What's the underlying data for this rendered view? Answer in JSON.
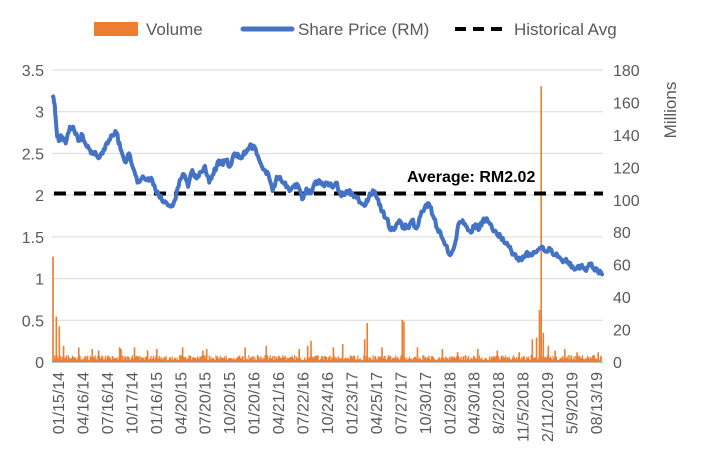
{
  "chart_data": {
    "type": "line",
    "title": "",
    "xlabel": "",
    "ylabel_left": "",
    "ylabel_right": "Millions",
    "ylim_left": [
      0,
      3.5
    ],
    "yticks_left": [
      "0",
      "0.5",
      "1",
      "1.5",
      "2",
      "2.5",
      "3",
      "3.5"
    ],
    "ylim_right": [
      0,
      180
    ],
    "yticks_right": [
      "0",
      "20",
      "40",
      "60",
      "80",
      "100",
      "120",
      "140",
      "160",
      "180"
    ],
    "grid": "horizontal",
    "legend_position": "top",
    "x_tick_labels": [
      "01/15/14",
      "04/16/14",
      "07/16/14",
      "10/17/14",
      "01/16/15",
      "04/20/15",
      "07/20/15",
      "10/20/15",
      "01/20/16",
      "04/21/16",
      "07/22/16",
      "10/24/16",
      "01/23/17",
      "04/25/17",
      "07/27/17",
      "10/30/17",
      "01/29/18",
      "04/30/18",
      "8/2/2018",
      "11/5/2018",
      "2/11/2019",
      "5/9/2019",
      "08/13/19"
    ],
    "series": [
      {
        "name": "Volume",
        "kind": "bar",
        "axis": "right",
        "color": "#ED7D31",
        "baseline_millions": 2.5,
        "spikes_millions": [
          [
            0,
            65
          ],
          [
            0.8,
            28
          ],
          [
            1.5,
            22
          ],
          [
            2.5,
            10
          ],
          [
            6.1,
            9
          ],
          [
            9.3,
            8
          ],
          [
            10.8,
            7
          ],
          [
            15.8,
            9
          ],
          [
            16.1,
            8
          ],
          [
            19.3,
            9
          ],
          [
            22.4,
            7
          ],
          [
            24.6,
            8
          ],
          [
            30.7,
            9
          ],
          [
            35.5,
            7
          ],
          [
            36.4,
            8
          ],
          [
            45.5,
            9
          ],
          [
            50.5,
            10
          ],
          [
            58.3,
            8
          ],
          [
            60.3,
            10
          ],
          [
            61.1,
            13
          ],
          [
            66.4,
            9
          ],
          [
            68.6,
            11
          ],
          [
            73.8,
            14
          ],
          [
            74.4,
            24
          ],
          [
            77.9,
            9
          ],
          [
            82.7,
            26
          ],
          [
            83.1,
            25
          ],
          [
            86.3,
            9
          ],
          [
            92.2,
            8
          ],
          [
            95.8,
            6
          ],
          [
            100.6,
            8
          ],
          [
            105.2,
            7
          ],
          [
            110.4,
            6
          ],
          [
            113.5,
            14
          ],
          [
            114.5,
            15
          ],
          [
            115.2,
            32
          ],
          [
            115.6,
            170
          ],
          [
            116.1,
            18
          ],
          [
            117.3,
            10
          ],
          [
            118.9,
            7
          ],
          [
            121.2,
            8
          ],
          [
            124.1,
            6
          ],
          [
            129.1,
            6
          ]
        ]
      },
      {
        "name": "Share Price (RM)",
        "kind": "line",
        "axis": "left",
        "color": "#4472C4",
        "x_months": [
          0,
          0.3,
          0.6,
          1,
          1.5,
          2,
          3,
          4,
          5,
          6,
          7,
          8,
          9,
          10,
          11,
          12,
          13,
          14,
          15,
          16,
          17,
          18,
          19,
          20,
          21,
          22,
          23,
          24,
          25,
          26,
          27,
          28,
          29,
          30,
          31,
          32,
          33,
          34,
          35,
          36,
          37,
          38,
          39,
          40,
          41,
          42,
          43,
          44,
          45,
          46,
          47,
          48,
          49,
          50,
          51,
          52,
          53,
          54,
          55,
          56,
          57,
          58,
          59,
          60,
          61,
          62,
          63,
          64,
          65,
          66,
          67,
          68,
          69,
          70,
          71,
          72,
          73,
          74,
          75,
          76,
          77,
          78,
          79,
          80,
          81,
          82,
          83,
          84,
          85,
          86,
          87,
          88,
          89,
          90,
          91,
          92,
          93,
          94,
          95,
          96,
          97,
          98,
          99,
          100,
          101,
          102,
          103,
          104,
          105,
          106,
          107,
          108,
          109,
          110,
          111,
          112,
          113,
          114,
          115,
          116,
          117,
          118,
          119,
          120,
          121,
          122,
          123,
          124,
          125,
          126,
          127,
          128,
          129,
          130
        ],
        "values": [
          3.18,
          3.1,
          2.95,
          2.7,
          2.65,
          2.7,
          2.62,
          2.82,
          2.78,
          2.65,
          2.72,
          2.58,
          2.5,
          2.52,
          2.45,
          2.55,
          2.62,
          2.72,
          2.75,
          2.55,
          2.4,
          2.5,
          2.32,
          2.15,
          2.2,
          2.18,
          2.2,
          2.12,
          2.0,
          1.92,
          1.9,
          1.88,
          1.95,
          2.18,
          2.25,
          2.1,
          2.3,
          2.2,
          2.28,
          2.35,
          2.15,
          2.25,
          2.4,
          2.38,
          2.42,
          2.35,
          2.5,
          2.45,
          2.48,
          2.55,
          2.6,
          2.55,
          2.4,
          2.3,
          2.25,
          2.05,
          2.22,
          2.18,
          2.15,
          2.05,
          2.1,
          2.12,
          1.95,
          2.08,
          2.02,
          2.15,
          2.18,
          2.12,
          2.15,
          2.1,
          2.15,
          2.02,
          2.0,
          2.05,
          2.0,
          1.98,
          1.9,
          1.88,
          2.02,
          2.05,
          1.95,
          1.8,
          1.72,
          1.58,
          1.6,
          1.7,
          1.62,
          1.62,
          1.7,
          1.6,
          1.75,
          1.85,
          1.9,
          1.75,
          1.6,
          1.5,
          1.4,
          1.28,
          1.38,
          1.65,
          1.7,
          1.62,
          1.55,
          1.65,
          1.6,
          1.72,
          1.68,
          1.6,
          1.55,
          1.5,
          1.42,
          1.38,
          1.3,
          1.25,
          1.22,
          1.3,
          1.28,
          1.32,
          1.35,
          1.38,
          1.32,
          1.35,
          1.28,
          1.25,
          1.22,
          1.2,
          1.15,
          1.12,
          1.15,
          1.1,
          1.18,
          1.12,
          1.08,
          1.05
        ]
      },
      {
        "name": "Historical Avg",
        "kind": "dashed-line",
        "axis": "left",
        "color": "#000000",
        "value": 2.02
      }
    ],
    "annotation": "Average: RM2.02"
  }
}
